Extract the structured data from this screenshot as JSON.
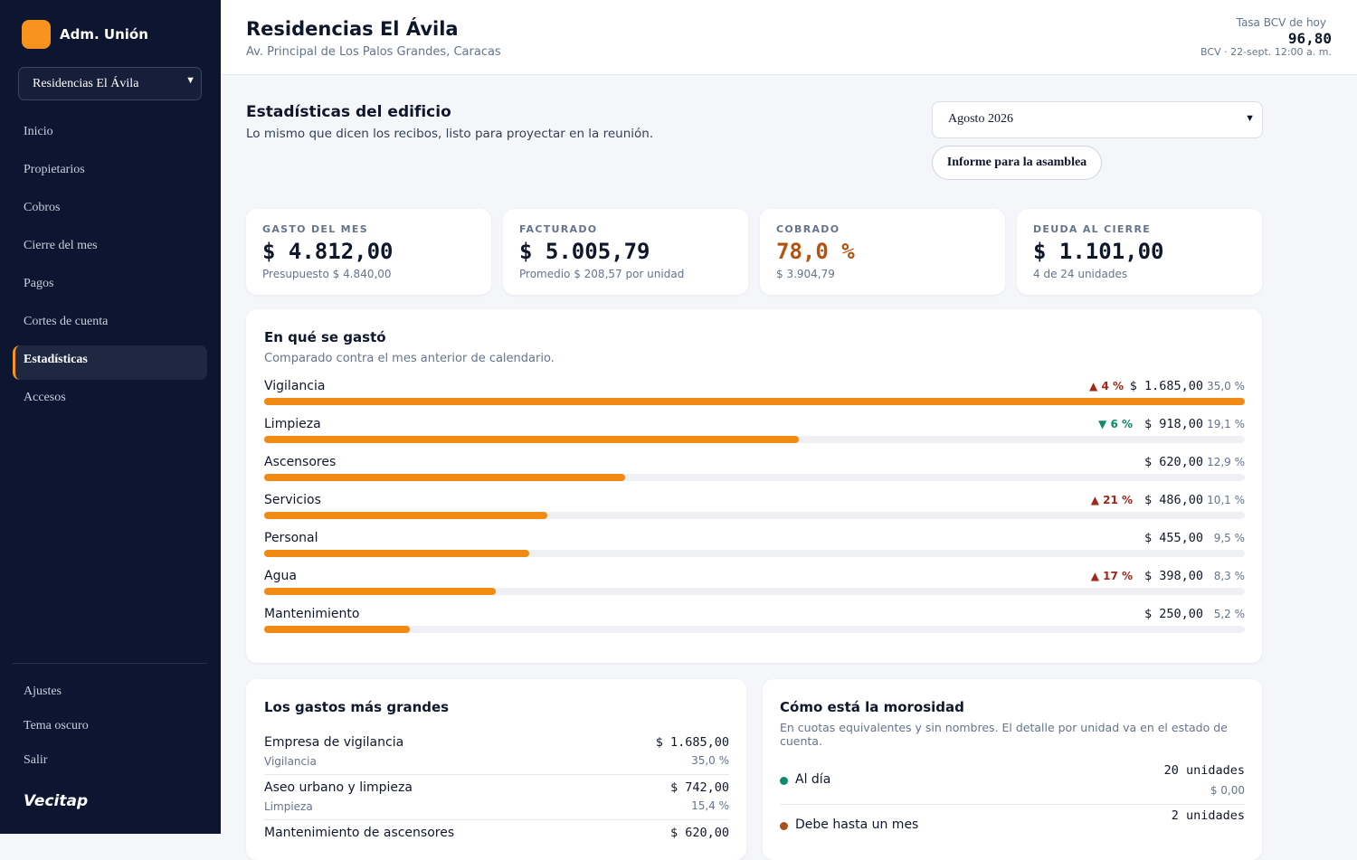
{
  "sidebar": {
    "brand": "Adm. Unión",
    "building_select": "Residencias El Ávila",
    "nav": [
      "Inicio",
      "Propietarios",
      "Cobros",
      "Cierre del mes",
      "Pagos",
      "Cortes de cuenta",
      "Estadísticas",
      "Accesos"
    ],
    "active": 6,
    "footer_nav": [
      "Ajustes",
      "Tema oscuro",
      "Salir"
    ],
    "logo": "Vecitap"
  },
  "header": {
    "title": "Residencias El Ávila",
    "address": "Av. Principal de Los Palos Grandes, Caracas",
    "rate_label": "Tasa BCV de hoy",
    "rate": "96,80",
    "rate_source": "BCV · 22-sept. 12:00 a. m."
  },
  "page": {
    "title": "Estadísticas del edificio",
    "subtitle": "Lo mismo que dicen los recibos, listo para proyectar en la reunión.",
    "period": "Agosto 2026",
    "report_button": "Informe para la asamblea"
  },
  "kpis": [
    {
      "label": "GASTO DEL MES",
      "value": "$ 4.812,00",
      "note": "Presupuesto $ 4.840,00"
    },
    {
      "label": "FACTURADO",
      "value": "$ 5.005,79",
      "note": "Promedio $ 208,57 por unidad"
    },
    {
      "label": "COBRADO",
      "value": "78,0 %",
      "note": "$ 3.904,79",
      "accent": "#b4530f"
    },
    {
      "label": "DEUDA AL CIERRE",
      "value": "$ 1.101,00",
      "note": "4 de 24 unidades"
    }
  ],
  "spending": {
    "title": "En qué se gastó",
    "subtitle": "Comparado contra el mes anterior de calendario.",
    "color": "#f08a12",
    "categories": [
      "Vigilancia",
      "Limpieza",
      "Ascensores",
      "Servicios",
      "Personal",
      "Agua",
      "Mantenimiento"
    ],
    "values": [
      1685,
      918,
      620,
      486,
      455,
      398,
      250
    ],
    "value_labels": [
      "$ 1.685,00",
      "$ 918,00",
      "$ 620,00",
      "$ 486,00",
      "$ 455,00",
      "$ 398,00",
      "$ 250,00"
    ],
    "shares": [
      "35,0 %",
      "19,1 %",
      "12,9 %",
      "10,1 %",
      "9,5 %",
      "8,3 %",
      "5,2 %"
    ],
    "changes": [
      "▲ 4 %",
      "▼ 6 %",
      null,
      "▲ 21 %",
      null,
      "▲ 17 %",
      null
    ]
  },
  "largest": {
    "title": "Los gastos más grandes",
    "items": [
      {
        "name": "Empresa de vigilancia",
        "category": "Vigilancia",
        "amount": "$ 1.685,00",
        "share": "35,0 %"
      },
      {
        "name": "Aseo urbano y limpieza",
        "category": "Limpieza",
        "amount": "$ 742,00",
        "share": "15,4 %"
      },
      {
        "name": "Mantenimiento de ascensores",
        "amount": "$ 620,00"
      }
    ]
  },
  "arrears": {
    "title": "Cómo está la morosidad",
    "subtitle": "En cuotas equivalentes y sin nombres. El detalle por unidad va en el estado de cuenta.",
    "rows": [
      {
        "label": "Al día",
        "units": "20 unidades",
        "amount": "$ 0,00",
        "color": "#0f8a6a"
      },
      {
        "label": "Debe hasta un mes",
        "units": "2 unidades",
        "color": "#a8521a"
      }
    ]
  }
}
